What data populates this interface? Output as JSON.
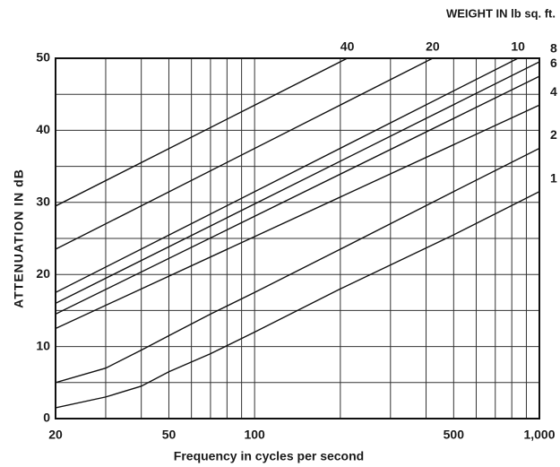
{
  "chart_data": {
    "type": "line",
    "title": "WEIGHT IN lb sq. ft.",
    "xlabel": "Frequency in cycles per second",
    "ylabel": "ATTENUATION IN dB",
    "xscale": "log",
    "xlim": [
      20,
      1000
    ],
    "ylim": [
      0,
      50
    ],
    "xticks": [
      20,
      50,
      100,
      500,
      {
        "value": 1000,
        "label": "1,000"
      }
    ],
    "yticks": [
      0,
      10,
      20,
      30,
      40,
      50
    ],
    "xgrid": [
      30,
      40,
      60,
      70,
      80,
      90,
      200,
      300,
      400,
      600,
      700,
      800,
      900
    ],
    "ygrid": [
      5,
      15,
      25,
      35,
      45
    ],
    "grid": true,
    "color": "#111111",
    "series": [
      {
        "name": "40",
        "x": [
          20,
          1000
        ],
        "values": [
          29.5,
          63.5
        ]
      },
      {
        "name": "20",
        "x": [
          20,
          1000
        ],
        "values": [
          23.5,
          57.5
        ]
      },
      {
        "name": "10",
        "x": [
          20,
          1000
        ],
        "values": [
          17.5,
          51.5
        ]
      },
      {
        "name": "8",
        "x": [
          20,
          1000
        ],
        "values": [
          16,
          49.5
        ]
      },
      {
        "name": "6",
        "x": [
          20,
          1000
        ],
        "values": [
          14.5,
          47.5
        ]
      },
      {
        "name": "4",
        "x": [
          20,
          1000
        ],
        "values": [
          12.5,
          43.5
        ]
      },
      {
        "name": "2",
        "x": [
          20,
          30,
          40,
          50,
          70,
          100,
          200,
          500,
          1000
        ],
        "values": [
          5,
          7,
          9.5,
          11.5,
          14.5,
          17.5,
          23.5,
          31.5,
          37.5
        ]
      },
      {
        "name": "1",
        "x": [
          20,
          30,
          40,
          50,
          70,
          100,
          200,
          500,
          1000
        ],
        "values": [
          1.5,
          3,
          4.5,
          6.5,
          9,
          12,
          18,
          25.5,
          31.5
        ]
      }
    ]
  }
}
